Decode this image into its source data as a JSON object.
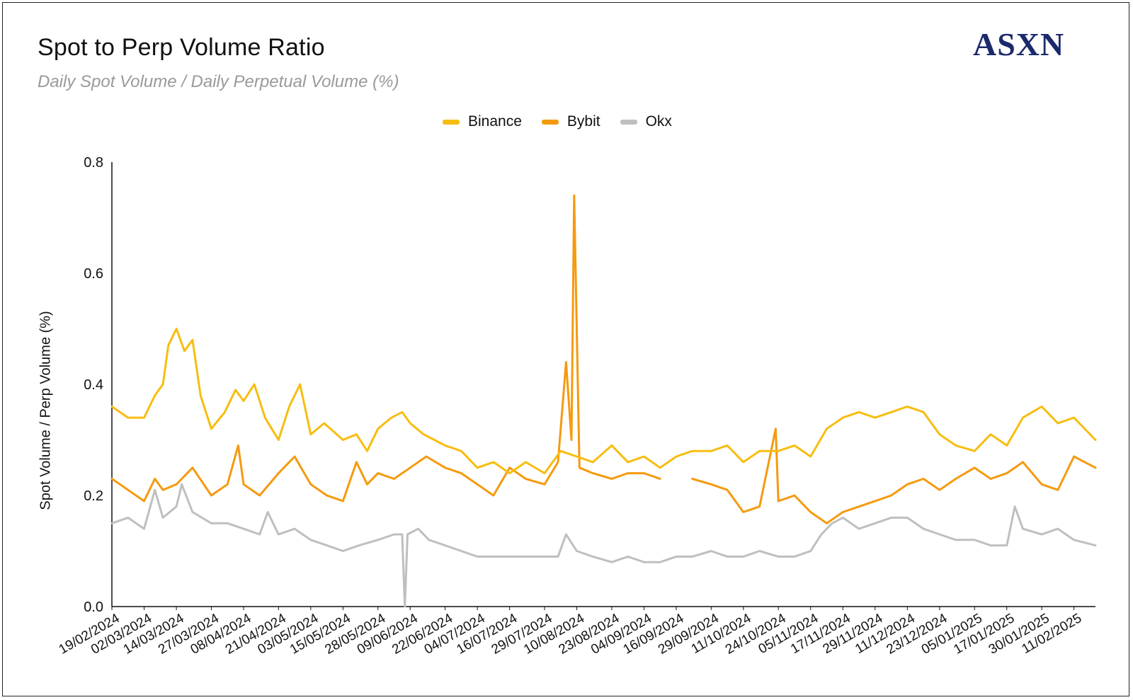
{
  "header": {
    "title": "Spot to Perp Volume Ratio",
    "subtitle": "Daily Spot Volume / Daily Perpetual Volume (%)",
    "logo": "ASXN"
  },
  "colors": {
    "binance": "#f7bd10",
    "bybit": "#f59a0f",
    "okx": "#bfbfbf"
  },
  "chart_data": {
    "type": "line",
    "xlabel": "",
    "ylabel": "Spot Volume / Perp Volume (%)",
    "ylim": [
      0,
      0.8
    ],
    "yticks": [
      "0.0",
      "0.2",
      "0.4",
      "0.6",
      "0.8"
    ],
    "xticks": [
      "19/02/2024",
      "02/03/2024",
      "14/03/2024",
      "27/03/2024",
      "08/04/2024",
      "21/04/2024",
      "03/05/2024",
      "15/05/2024",
      "28/05/2024",
      "09/06/2024",
      "22/06/2024",
      "04/07/2024",
      "16/07/2024",
      "29/07/2024",
      "10/08/2024",
      "23/08/2024",
      "04/09/2024",
      "16/09/2024",
      "29/09/2024",
      "11/10/2024",
      "24/10/2024",
      "05/11/2024",
      "17/11/2024",
      "29/11/2024",
      "11/12/2024",
      "23/12/2024",
      "05/01/2025",
      "17/01/2025",
      "30/01/2025",
      "11/02/2025"
    ],
    "x_range": [
      "19/02/2024",
      "19/02/2025"
    ],
    "legend_position": "top-center",
    "grid": false,
    "series": [
      {
        "name": "Binance",
        "color_key": "binance",
        "points": [
          [
            "19/02/2024",
            0.36
          ],
          [
            "25/02/2024",
            0.34
          ],
          [
            "02/03/2024",
            0.34
          ],
          [
            "06/03/2024",
            0.38
          ],
          [
            "09/03/2024",
            0.4
          ],
          [
            "11/03/2024",
            0.47
          ],
          [
            "14/03/2024",
            0.5
          ],
          [
            "17/03/2024",
            0.46
          ],
          [
            "20/03/2024",
            0.48
          ],
          [
            "23/03/2024",
            0.38
          ],
          [
            "27/03/2024",
            0.32
          ],
          [
            "01/04/2024",
            0.35
          ],
          [
            "05/04/2024",
            0.39
          ],
          [
            "08/04/2024",
            0.37
          ],
          [
            "12/04/2024",
            0.4
          ],
          [
            "16/04/2024",
            0.34
          ],
          [
            "21/04/2024",
            0.3
          ],
          [
            "25/04/2024",
            0.36
          ],
          [
            "29/04/2024",
            0.4
          ],
          [
            "03/05/2024",
            0.31
          ],
          [
            "08/05/2024",
            0.33
          ],
          [
            "15/05/2024",
            0.3
          ],
          [
            "20/05/2024",
            0.31
          ],
          [
            "24/05/2024",
            0.28
          ],
          [
            "28/05/2024",
            0.32
          ],
          [
            "02/06/2024",
            0.34
          ],
          [
            "06/06/2024",
            0.35
          ],
          [
            "09/06/2024",
            0.33
          ],
          [
            "14/06/2024",
            0.31
          ],
          [
            "18/06/2024",
            0.3
          ],
          [
            "22/06/2024",
            0.29
          ],
          [
            "28/06/2024",
            0.28
          ],
          [
            "04/07/2024",
            0.25
          ],
          [
            "10/07/2024",
            0.26
          ],
          [
            "16/07/2024",
            0.24
          ],
          [
            "22/07/2024",
            0.26
          ],
          [
            "29/07/2024",
            0.24
          ],
          [
            "04/08/2024",
            0.28
          ],
          [
            "10/08/2024",
            0.27
          ],
          [
            "16/08/2024",
            0.26
          ],
          [
            "23/08/2024",
            0.29
          ],
          [
            "29/08/2024",
            0.26
          ],
          [
            "04/09/2024",
            0.27
          ],
          [
            "10/09/2024",
            0.25
          ],
          [
            "16/09/2024",
            0.27
          ],
          [
            "22/09/2024",
            0.28
          ],
          [
            "29/09/2024",
            0.28
          ],
          [
            "05/10/2024",
            0.29
          ],
          [
            "11/10/2024",
            0.26
          ],
          [
            "17/10/2024",
            0.28
          ],
          [
            "24/10/2024",
            0.28
          ],
          [
            "30/10/2024",
            0.29
          ],
          [
            "05/11/2024",
            0.27
          ],
          [
            "11/11/2024",
            0.32
          ],
          [
            "17/11/2024",
            0.34
          ],
          [
            "23/11/2024",
            0.35
          ],
          [
            "29/11/2024",
            0.34
          ],
          [
            "05/12/2024",
            0.35
          ],
          [
            "11/12/2024",
            0.36
          ],
          [
            "17/12/2024",
            0.35
          ],
          [
            "23/12/2024",
            0.31
          ],
          [
            "29/12/2024",
            0.29
          ],
          [
            "05/01/2025",
            0.28
          ],
          [
            "11/01/2025",
            0.31
          ],
          [
            "17/01/2025",
            0.29
          ],
          [
            "23/01/2025",
            0.34
          ],
          [
            "30/01/2025",
            0.36
          ],
          [
            "05/02/2025",
            0.33
          ],
          [
            "11/02/2025",
            0.34
          ],
          [
            "19/02/2025",
            0.3
          ]
        ]
      },
      {
        "name": "Bybit",
        "color_key": "bybit",
        "points": [
          [
            "19/02/2024",
            0.23
          ],
          [
            "25/02/2024",
            0.21
          ],
          [
            "02/03/2024",
            0.19
          ],
          [
            "06/03/2024",
            0.23
          ],
          [
            "09/03/2024",
            0.21
          ],
          [
            "14/03/2024",
            0.22
          ],
          [
            "20/03/2024",
            0.25
          ],
          [
            "27/03/2024",
            0.2
          ],
          [
            "02/04/2024",
            0.22
          ],
          [
            "06/04/2024",
            0.29
          ],
          [
            "08/04/2024",
            0.22
          ],
          [
            "14/04/2024",
            0.2
          ],
          [
            "21/04/2024",
            0.24
          ],
          [
            "27/04/2024",
            0.27
          ],
          [
            "03/05/2024",
            0.22
          ],
          [
            "09/05/2024",
            0.2
          ],
          [
            "15/05/2024",
            0.19
          ],
          [
            "20/05/2024",
            0.26
          ],
          [
            "24/05/2024",
            0.22
          ],
          [
            "28/05/2024",
            0.24
          ],
          [
            "03/06/2024",
            0.23
          ],
          [
            "09/06/2024",
            0.25
          ],
          [
            "15/06/2024",
            0.27
          ],
          [
            "22/06/2024",
            0.25
          ],
          [
            "28/06/2024",
            0.24
          ],
          [
            "04/07/2024",
            0.22
          ],
          [
            "10/07/2024",
            0.2
          ],
          [
            "16/07/2024",
            0.25
          ],
          [
            "22/07/2024",
            0.23
          ],
          [
            "29/07/2024",
            0.22
          ],
          [
            "03/08/2024",
            0.26
          ],
          [
            "06/08/2024",
            0.44
          ],
          [
            "08/08/2024",
            0.3
          ],
          [
            "09/08/2024",
            0.74
          ],
          [
            "11/08/2024",
            0.25
          ],
          [
            "16/08/2024",
            0.24
          ],
          [
            "23/08/2024",
            0.23
          ],
          [
            "29/08/2024",
            0.24
          ],
          [
            "04/09/2024",
            0.24
          ],
          [
            "10/09/2024",
            0.23
          ],
          [
            "16/09/2024",
            null
          ],
          [
            "22/09/2024",
            0.23
          ],
          [
            "29/09/2024",
            0.22
          ],
          [
            "05/10/2024",
            0.21
          ],
          [
            "11/10/2024",
            0.17
          ],
          [
            "17/10/2024",
            0.18
          ],
          [
            "23/10/2024",
            0.32
          ],
          [
            "24/10/2024",
            0.19
          ],
          [
            "30/10/2024",
            0.2
          ],
          [
            "05/11/2024",
            0.17
          ],
          [
            "11/11/2024",
            0.15
          ],
          [
            "17/11/2024",
            0.17
          ],
          [
            "23/11/2024",
            0.18
          ],
          [
            "29/11/2024",
            0.19
          ],
          [
            "05/12/2024",
            0.2
          ],
          [
            "11/12/2024",
            0.22
          ],
          [
            "17/12/2024",
            0.23
          ],
          [
            "23/12/2024",
            0.21
          ],
          [
            "29/12/2024",
            0.23
          ],
          [
            "05/01/2025",
            0.25
          ],
          [
            "11/01/2025",
            0.23
          ],
          [
            "17/01/2025",
            0.24
          ],
          [
            "23/01/2025",
            0.26
          ],
          [
            "30/01/2025",
            0.22
          ],
          [
            "05/02/2025",
            0.21
          ],
          [
            "11/02/2025",
            0.27
          ],
          [
            "19/02/2025",
            0.25
          ]
        ]
      },
      {
        "name": "Okx",
        "color_key": "okx",
        "points": [
          [
            "19/02/2024",
            0.15
          ],
          [
            "25/02/2024",
            0.16
          ],
          [
            "02/03/2024",
            0.14
          ],
          [
            "06/03/2024",
            0.21
          ],
          [
            "09/03/2024",
            0.16
          ],
          [
            "14/03/2024",
            0.18
          ],
          [
            "16/03/2024",
            0.22
          ],
          [
            "20/03/2024",
            0.17
          ],
          [
            "27/03/2024",
            0.15
          ],
          [
            "02/04/2024",
            0.15
          ],
          [
            "08/04/2024",
            0.14
          ],
          [
            "14/04/2024",
            0.13
          ],
          [
            "17/04/2024",
            0.17
          ],
          [
            "21/04/2024",
            0.13
          ],
          [
            "27/04/2024",
            0.14
          ],
          [
            "03/05/2024",
            0.12
          ],
          [
            "09/05/2024",
            0.11
          ],
          [
            "15/05/2024",
            0.1
          ],
          [
            "21/05/2024",
            0.11
          ],
          [
            "28/05/2024",
            0.12
          ],
          [
            "03/06/2024",
            0.13
          ],
          [
            "06/06/2024",
            0.13
          ],
          [
            "07/06/2024",
            0.0
          ],
          [
            "08/06/2024",
            0.13
          ],
          [
            "12/06/2024",
            0.14
          ],
          [
            "16/06/2024",
            0.12
          ],
          [
            "22/06/2024",
            0.11
          ],
          [
            "28/06/2024",
            0.1
          ],
          [
            "04/07/2024",
            0.09
          ],
          [
            "10/07/2024",
            0.09
          ],
          [
            "16/07/2024",
            0.09
          ],
          [
            "22/07/2024",
            0.09
          ],
          [
            "29/07/2024",
            0.09
          ],
          [
            "03/08/2024",
            0.09
          ],
          [
            "06/08/2024",
            0.13
          ],
          [
            "10/08/2024",
            0.1
          ],
          [
            "16/08/2024",
            0.09
          ],
          [
            "23/08/2024",
            0.08
          ],
          [
            "29/08/2024",
            0.09
          ],
          [
            "04/09/2024",
            0.08
          ],
          [
            "10/09/2024",
            0.08
          ],
          [
            "16/09/2024",
            0.09
          ],
          [
            "22/09/2024",
            0.09
          ],
          [
            "29/09/2024",
            0.1
          ],
          [
            "05/10/2024",
            0.09
          ],
          [
            "11/10/2024",
            0.09
          ],
          [
            "17/10/2024",
            0.1
          ],
          [
            "24/10/2024",
            0.09
          ],
          [
            "30/10/2024",
            0.09
          ],
          [
            "05/11/2024",
            0.1
          ],
          [
            "09/11/2024",
            0.13
          ],
          [
            "13/11/2024",
            0.15
          ],
          [
            "17/11/2024",
            0.16
          ],
          [
            "23/11/2024",
            0.14
          ],
          [
            "29/11/2024",
            0.15
          ],
          [
            "05/12/2024",
            0.16
          ],
          [
            "11/12/2024",
            0.16
          ],
          [
            "17/12/2024",
            0.14
          ],
          [
            "23/12/2024",
            0.13
          ],
          [
            "29/12/2024",
            0.12
          ],
          [
            "05/01/2025",
            0.12
          ],
          [
            "11/01/2025",
            0.11
          ],
          [
            "17/01/2025",
            0.11
          ],
          [
            "20/01/2025",
            0.18
          ],
          [
            "23/01/2025",
            0.14
          ],
          [
            "30/01/2025",
            0.13
          ],
          [
            "05/02/2025",
            0.14
          ],
          [
            "11/02/2025",
            0.12
          ],
          [
            "19/02/2025",
            0.11
          ]
        ]
      }
    ]
  }
}
